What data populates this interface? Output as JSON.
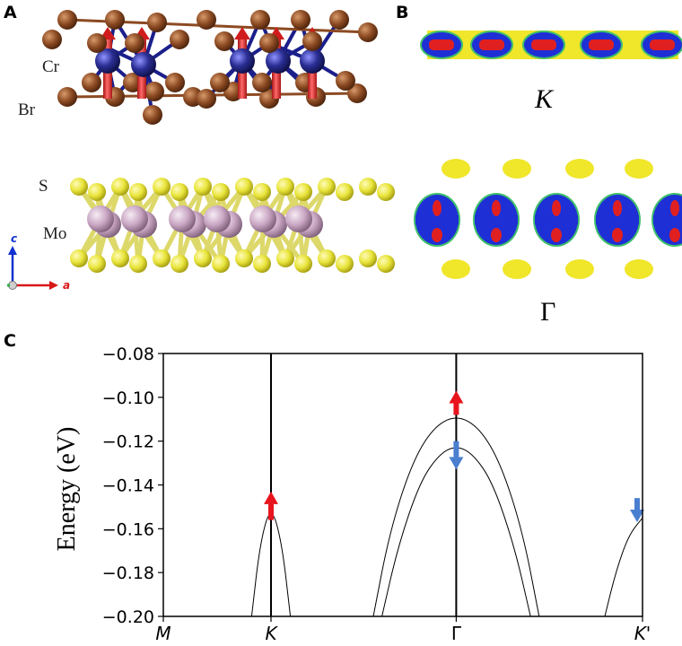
{
  "figure": {
    "panel_a": {
      "letter": "A",
      "atom_labels": {
        "cr": "Cr",
        "br": "Br",
        "s": "S",
        "mo": "Mo"
      },
      "axis_labels": {
        "c": "c",
        "a": "a"
      },
      "colors": {
        "cr": "#2b2f95",
        "br": "#8c4a22",
        "mo": "#c9a6c3",
        "s": "#e8e43a",
        "spin_arrow": "#e23a3a"
      }
    },
    "panel_b": {
      "letter": "B",
      "label_k": "K",
      "label_gamma": "Γ",
      "colors": {
        "outer": "#f0e62a",
        "mid": "#1e2fd6",
        "inner_green": "#3fbf6a",
        "core": "#e02020"
      }
    },
    "panel_c": {
      "letter": "C"
    }
  },
  "chart_data": {
    "type": "line",
    "title": "",
    "xlabel": "",
    "ylabel": "Energy (eV)",
    "ylim": [
      -0.2,
      -0.08
    ],
    "yticks": [
      -0.08,
      -0.1,
      -0.12,
      -0.14,
      -0.16,
      -0.18,
      -0.2
    ],
    "ytick_labels": [
      "−0.08",
      "−0.10",
      "−0.12",
      "−0.14",
      "−0.16",
      "−0.18",
      "−0.20"
    ],
    "x_kpoints": [
      {
        "label": "M",
        "pos": 0.0,
        "vline": false
      },
      {
        "label": "K",
        "pos": 1.0,
        "vline": true
      },
      {
        "label": "Γ",
        "pos": 2.72,
        "vline": true
      },
      {
        "label": "K'",
        "pos": 4.45,
        "vline": false
      }
    ],
    "xlim": [
      0.0,
      4.45
    ],
    "series": [
      {
        "points": [
          [
            0.82,
            -0.2
          ],
          [
            0.9,
            -0.166
          ],
          [
            1.0,
            -0.149
          ],
          [
            1.1,
            -0.166
          ],
          [
            1.18,
            -0.2
          ]
        ]
      },
      {
        "points": [
          [
            1.95,
            -0.2
          ],
          [
            2.1,
            -0.162
          ],
          [
            2.3,
            -0.131
          ],
          [
            2.5,
            -0.114
          ],
          [
            2.72,
            -0.108
          ],
          [
            2.94,
            -0.114
          ],
          [
            3.14,
            -0.131
          ],
          [
            3.34,
            -0.162
          ],
          [
            3.49,
            -0.2
          ]
        ]
      },
      {
        "points": [
          [
            2.03,
            -0.2
          ],
          [
            2.18,
            -0.168
          ],
          [
            2.38,
            -0.139
          ],
          [
            2.56,
            -0.126
          ],
          [
            2.72,
            -0.122
          ],
          [
            2.88,
            -0.126
          ],
          [
            3.06,
            -0.139
          ],
          [
            3.26,
            -0.168
          ],
          [
            3.41,
            -0.2
          ]
        ]
      },
      {
        "points": [
          [
            4.1,
            -0.2
          ],
          [
            4.2,
            -0.18
          ],
          [
            4.32,
            -0.163
          ],
          [
            4.45,
            -0.155
          ]
        ]
      }
    ],
    "spin_arrows": [
      {
        "x": 1.0,
        "y_from": -0.156,
        "y_to": -0.143,
        "dir": "up",
        "color": "#e8141e"
      },
      {
        "x": 2.72,
        "y_from": -0.108,
        "y_to": -0.097,
        "dir": "up",
        "color": "#e8141e"
      },
      {
        "x": 2.72,
        "y_from": -0.12,
        "y_to": -0.133,
        "dir": "down",
        "color": "#4a7fd0"
      },
      {
        "x": 4.4,
        "y_from": -0.146,
        "y_to": -0.157,
        "dir": "down",
        "color": "#4a7fd0"
      }
    ]
  }
}
